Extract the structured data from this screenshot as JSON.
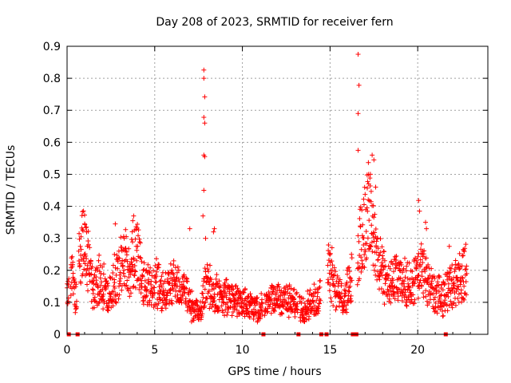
{
  "chart_data": {
    "type": "scatter",
    "title": "Day 208 of 2023, SRMTID for receiver fern",
    "xlabel": "GPS time / hours",
    "ylabel": "SRMTID / TECUs",
    "xlim": [
      0,
      24
    ],
    "ylim": [
      0,
      0.9
    ],
    "xticks": [
      "0",
      "5",
      "10",
      "15",
      "20"
    ],
    "xtick_values": [
      0,
      5,
      10,
      15,
      20
    ],
    "yticks": [
      "0",
      "0.1",
      "0.2",
      "0.3",
      "0.4",
      "0.5",
      "0.6",
      "0.7",
      "0.8",
      "0.9"
    ],
    "ytick_values": [
      0,
      0.1,
      0.2,
      0.3,
      0.4,
      0.5,
      0.6,
      0.7,
      0.8,
      0.9
    ],
    "grid": true,
    "marker": "+",
    "color": "#ff0000",
    "profile": [
      [
        0.0,
        0.13
      ],
      [
        0.3,
        0.17
      ],
      [
        0.5,
        0.12
      ],
      [
        0.7,
        0.24
      ],
      [
        0.9,
        0.29
      ],
      [
        1.1,
        0.26
      ],
      [
        1.3,
        0.2
      ],
      [
        1.5,
        0.13
      ],
      [
        1.8,
        0.17
      ],
      [
        2.1,
        0.15
      ],
      [
        2.4,
        0.11
      ],
      [
        2.7,
        0.17
      ],
      [
        3.0,
        0.21
      ],
      [
        3.3,
        0.23
      ],
      [
        3.6,
        0.19
      ],
      [
        3.9,
        0.26
      ],
      [
        4.2,
        0.21
      ],
      [
        4.5,
        0.15
      ],
      [
        4.8,
        0.14
      ],
      [
        5.1,
        0.16
      ],
      [
        5.4,
        0.15
      ],
      [
        5.7,
        0.13
      ],
      [
        6.0,
        0.16
      ],
      [
        6.3,
        0.16
      ],
      [
        6.6,
        0.14
      ],
      [
        6.9,
        0.11
      ],
      [
        7.2,
        0.08
      ],
      [
        7.5,
        0.06
      ],
      [
        7.8,
        0.13
      ],
      [
        8.0,
        0.17
      ],
      [
        8.3,
        0.13
      ],
      [
        8.6,
        0.12
      ],
      [
        8.9,
        0.11
      ],
      [
        9.2,
        0.12
      ],
      [
        9.5,
        0.11
      ],
      [
        9.8,
        0.1
      ],
      [
        10.1,
        0.1
      ],
      [
        10.4,
        0.09
      ],
      [
        10.7,
        0.08
      ],
      [
        11.0,
        0.08
      ],
      [
        11.3,
        0.09
      ],
      [
        11.6,
        0.1
      ],
      [
        11.9,
        0.11
      ],
      [
        12.2,
        0.11
      ],
      [
        12.5,
        0.11
      ],
      [
        12.8,
        0.1
      ],
      [
        13.1,
        0.09
      ],
      [
        13.4,
        0.08
      ],
      [
        13.7,
        0.09
      ],
      [
        14.0,
        0.1
      ],
      [
        14.3,
        0.11
      ],
      [
        14.6,
        0.15
      ],
      [
        14.9,
        0.24
      ],
      [
        15.2,
        0.17
      ],
      [
        15.5,
        0.12
      ],
      [
        15.8,
        0.11
      ],
      [
        16.1,
        0.15
      ],
      [
        16.4,
        0.2
      ],
      [
        16.6,
        0.25
      ],
      [
        16.9,
        0.33
      ],
      [
        17.2,
        0.39
      ],
      [
        17.5,
        0.32
      ],
      [
        17.8,
        0.21
      ],
      [
        18.1,
        0.18
      ],
      [
        18.4,
        0.16
      ],
      [
        18.7,
        0.17
      ],
      [
        19.0,
        0.16
      ],
      [
        19.3,
        0.16
      ],
      [
        19.6,
        0.15
      ],
      [
        19.9,
        0.17
      ],
      [
        20.2,
        0.2
      ],
      [
        20.5,
        0.17
      ],
      [
        20.8,
        0.14
      ],
      [
        21.1,
        0.12
      ],
      [
        21.4,
        0.12
      ],
      [
        21.7,
        0.14
      ],
      [
        22.0,
        0.16
      ],
      [
        22.3,
        0.17
      ],
      [
        22.6,
        0.18
      ],
      [
        22.8,
        0.2
      ]
    ],
    "spikes": [
      [
        7.8,
        0.826
      ],
      [
        7.8,
        0.8
      ],
      [
        7.85,
        0.742
      ],
      [
        7.8,
        0.678
      ],
      [
        7.85,
        0.66
      ],
      [
        7.8,
        0.56
      ],
      [
        7.85,
        0.555
      ],
      [
        7.8,
        0.45
      ],
      [
        7.75,
        0.37
      ],
      [
        7.9,
        0.3
      ],
      [
        16.6,
        0.875
      ],
      [
        16.65,
        0.778
      ],
      [
        16.6,
        0.69
      ],
      [
        16.6,
        0.575
      ],
      [
        17.4,
        0.56
      ],
      [
        17.5,
        0.545
      ],
      [
        17.3,
        0.5
      ],
      [
        17.2,
        0.47
      ],
      [
        17.6,
        0.46
      ],
      [
        20.05,
        0.418
      ],
      [
        20.1,
        0.385
      ],
      [
        20.45,
        0.35
      ],
      [
        20.5,
        0.33
      ],
      [
        3.8,
        0.37
      ],
      [
        3.75,
        0.355
      ],
      [
        7.0,
        0.33
      ],
      [
        8.4,
        0.33
      ],
      [
        8.35,
        0.32
      ],
      [
        21.8,
        0.275
      ],
      [
        22.6,
        0.265
      ],
      [
        2.75,
        0.345
      ],
      [
        1.0,
        0.345
      ],
      [
        1.1,
        0.335
      ]
    ],
    "gap_markers_x": [
      0.1,
      0.6,
      11.2,
      13.2,
      14.5,
      14.8,
      16.3,
      16.4,
      16.5,
      21.6
    ]
  }
}
